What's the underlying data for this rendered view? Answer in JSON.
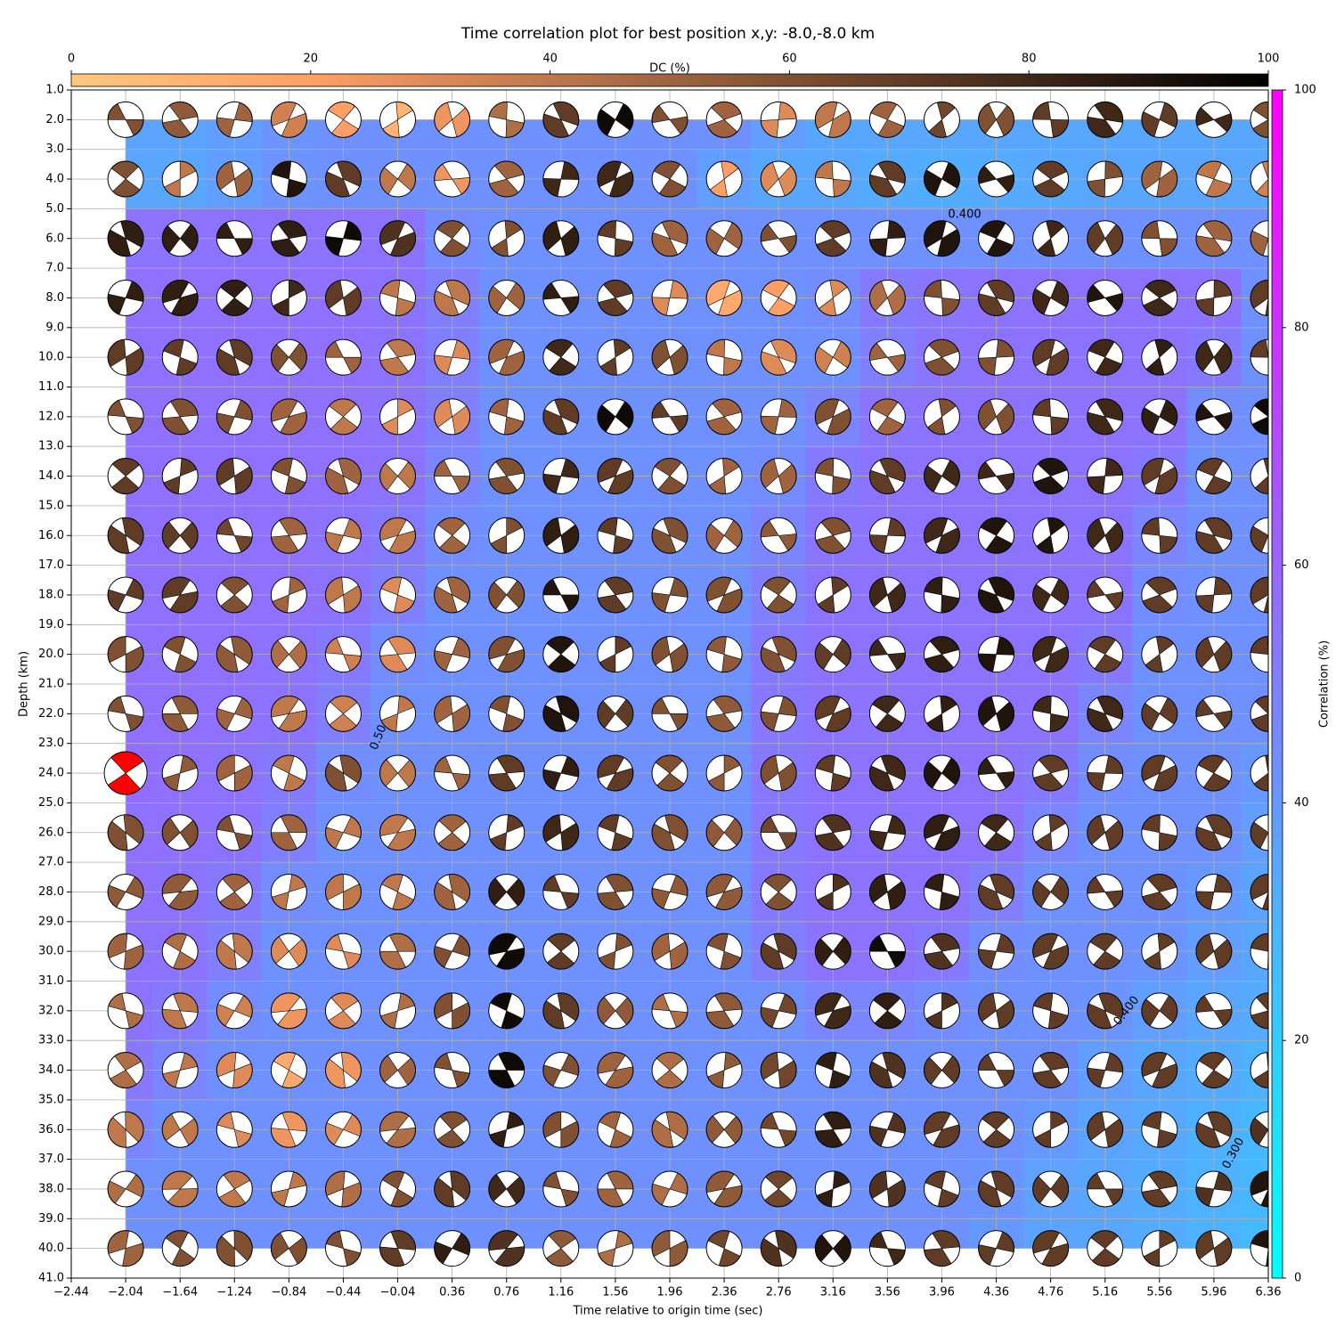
{
  "chart_data": {
    "type": "beachball-grid",
    "title": "Time correlation plot for best position x,y: -8.0,-8.0 km",
    "xlabel": "Time relative to origin time (sec)",
    "ylabel": "Depth (km)",
    "dc_label": "DC (%)",
    "corr_label": "Correlation (%)",
    "dc_colormap": "copper_r",
    "corr_colormap": "cool",
    "dc_lim": [
      0,
      100
    ],
    "dc_ticks": [
      0,
      20,
      40,
      60,
      80,
      100
    ],
    "corr_lim": [
      0,
      100
    ],
    "corr_ticks": [
      0,
      20,
      40,
      60,
      80,
      100
    ],
    "xlim": [
      -2.44,
      6.36
    ],
    "xticks": [
      {
        "value": -2.44,
        "label": "−2.44"
      },
      {
        "value": -2.04,
        "label": "−2.04"
      },
      {
        "value": -1.64,
        "label": "−1.64"
      },
      {
        "value": -1.24,
        "label": "−1.24"
      },
      {
        "value": -0.84,
        "label": "−0.84"
      },
      {
        "value": -0.44,
        "label": "−0.44"
      },
      {
        "value": -0.04,
        "label": "−0.04"
      },
      0.36,
      0.76,
      1.16,
      1.56,
      1.96,
      2.36,
      2.76,
      3.16,
      3.56,
      3.96,
      4.36,
      4.76,
      5.16,
      5.56,
      5.96,
      6.36
    ],
    "ylim": [
      41,
      1
    ],
    "yticks": [
      {
        "value": 1,
        "label": "1.0"
      },
      {
        "value": 2,
        "label": "2.0"
      },
      {
        "value": 3,
        "label": "3.0"
      },
      {
        "value": 4,
        "label": "4.0"
      },
      {
        "value": 5,
        "label": "5.0"
      },
      {
        "value": 6,
        "label": "6.0"
      },
      {
        "value": 7,
        "label": "7.0"
      },
      {
        "value": 8,
        "label": "8.0"
      },
      {
        "value": 9,
        "label": "9.0"
      },
      {
        "value": 10,
        "label": "10.0"
      },
      {
        "value": 11,
        "label": "11.0"
      },
      {
        "value": 12,
        "label": "12.0"
      },
      {
        "value": 13,
        "label": "13.0"
      },
      {
        "value": 14,
        "label": "14.0"
      },
      {
        "value": 15,
        "label": "15.0"
      },
      {
        "value": 16,
        "label": "16.0"
      },
      {
        "value": 17,
        "label": "17.0"
      },
      {
        "value": 18,
        "label": "18.0"
      },
      {
        "value": 19,
        "label": "19.0"
      },
      {
        "value": 20,
        "label": "20.0"
      },
      {
        "value": 21,
        "label": "21.0"
      },
      {
        "value": 22,
        "label": "22.0"
      },
      {
        "value": 23,
        "label": "23.0"
      },
      {
        "value": 24,
        "label": "24.0"
      },
      {
        "value": 25,
        "label": "25.0"
      },
      {
        "value": 26,
        "label": "26.0"
      },
      {
        "value": 27,
        "label": "27.0"
      },
      {
        "value": 28,
        "label": "28.0"
      },
      {
        "value": 29,
        "label": "29.0"
      },
      {
        "value": 30,
        "label": "30.0"
      },
      {
        "value": 31,
        "label": "31.0"
      },
      {
        "value": 32,
        "label": "32.0"
      },
      {
        "value": 33,
        "label": "33.0"
      },
      {
        "value": 34,
        "label": "34.0"
      },
      {
        "value": 35,
        "label": "35.0"
      },
      {
        "value": 36,
        "label": "36.0"
      },
      {
        "value": 37,
        "label": "37.0"
      },
      {
        "value": 38,
        "label": "38.0"
      },
      {
        "value": 39,
        "label": "39.0"
      },
      {
        "value": 40,
        "label": "40.0"
      },
      {
        "value": 41,
        "label": "41.0"
      }
    ],
    "grid": true,
    "x": [
      -2.04,
      -1.64,
      -1.24,
      -0.84,
      -0.44,
      -0.04,
      0.36,
      0.76,
      1.16,
      1.56,
      1.96,
      2.36,
      2.76,
      3.16,
      3.56,
      3.96,
      4.36,
      4.76,
      5.16,
      5.56,
      5.96,
      6.36
    ],
    "depths": [
      2,
      4,
      6,
      8,
      10,
      12,
      14,
      16,
      18,
      20,
      22,
      24,
      26,
      28,
      30,
      32,
      34,
      36,
      38,
      40
    ],
    "best": {
      "time": -2.04,
      "depth": 24,
      "color": "#ff0000"
    },
    "contour_labels": [
      "0.400",
      "0.50",
      "0.400",
      "0.300"
    ],
    "dc": [
      [
        60,
        55,
        50,
        35,
        20,
        10,
        25,
        45,
        70,
        95,
        60,
        50,
        30,
        40,
        50,
        65,
        60,
        70,
        80,
        70,
        80,
        60
      ],
      [
        60,
        40,
        50,
        90,
        70,
        40,
        25,
        50,
        80,
        80,
        60,
        20,
        30,
        40,
        70,
        90,
        85,
        70,
        60,
        50,
        40,
        35
      ],
      [
        85,
        85,
        85,
        85,
        95,
        75,
        60,
        60,
        85,
        70,
        50,
        50,
        60,
        70,
        85,
        90,
        90,
        80,
        70,
        60,
        50,
        50
      ],
      [
        85,
        85,
        85,
        80,
        70,
        40,
        40,
        50,
        85,
        70,
        30,
        15,
        20,
        30,
        45,
        60,
        70,
        80,
        90,
        80,
        70,
        70
      ],
      [
        70,
        70,
        70,
        60,
        50,
        40,
        30,
        50,
        80,
        70,
        60,
        40,
        30,
        35,
        50,
        60,
        60,
        70,
        80,
        85,
        80,
        70
      ],
      [
        60,
        60,
        60,
        50,
        40,
        30,
        30,
        50,
        70,
        95,
        70,
        50,
        50,
        60,
        50,
        60,
        60,
        70,
        80,
        85,
        90,
        95
      ],
      [
        70,
        70,
        70,
        60,
        50,
        40,
        50,
        60,
        80,
        70,
        60,
        50,
        50,
        60,
        70,
        80,
        80,
        90,
        80,
        70,
        70,
        70
      ],
      [
        70,
        70,
        65,
        50,
        40,
        40,
        50,
        60,
        85,
        70,
        60,
        50,
        55,
        60,
        70,
        80,
        90,
        90,
        80,
        70,
        70,
        70
      ],
      [
        70,
        70,
        60,
        50,
        40,
        30,
        50,
        60,
        90,
        70,
        60,
        60,
        60,
        70,
        80,
        85,
        90,
        80,
        70,
        70,
        70,
        70
      ],
      [
        60,
        60,
        55,
        45,
        35,
        30,
        50,
        60,
        90,
        70,
        60,
        55,
        60,
        70,
        80,
        85,
        90,
        80,
        70,
        70,
        70,
        70
      ],
      [
        60,
        55,
        50,
        40,
        35,
        40,
        50,
        60,
        90,
        70,
        60,
        55,
        60,
        70,
        80,
        85,
        90,
        80,
        80,
        70,
        70,
        70
      ],
      [
        60,
        55,
        50,
        40,
        60,
        40,
        50,
        70,
        85,
        70,
        60,
        55,
        60,
        70,
        80,
        90,
        85,
        70,
        70,
        70,
        70,
        70
      ],
      [
        60,
        60,
        60,
        50,
        40,
        40,
        50,
        70,
        80,
        70,
        60,
        55,
        65,
        75,
        80,
        85,
        80,
        70,
        70,
        70,
        70,
        70
      ],
      [
        55,
        55,
        50,
        40,
        40,
        40,
        50,
        85,
        70,
        60,
        55,
        55,
        60,
        75,
        85,
        85,
        70,
        70,
        70,
        70,
        70,
        70
      ],
      [
        50,
        45,
        40,
        30,
        30,
        45,
        60,
        95,
        70,
        60,
        50,
        60,
        70,
        85,
        95,
        75,
        70,
        70,
        70,
        70,
        70,
        70
      ],
      [
        45,
        40,
        35,
        25,
        30,
        45,
        60,
        95,
        70,
        55,
        45,
        55,
        65,
        80,
        85,
        75,
        70,
        70,
        70,
        70,
        70,
        70
      ],
      [
        45,
        40,
        30,
        15,
        25,
        50,
        60,
        95,
        60,
        50,
        45,
        55,
        65,
        85,
        75,
        70,
        70,
        70,
        70,
        70,
        70,
        70
      ],
      [
        40,
        40,
        30,
        25,
        30,
        45,
        60,
        85,
        60,
        50,
        45,
        55,
        65,
        85,
        75,
        70,
        70,
        70,
        70,
        70,
        70,
        75
      ],
      [
        45,
        40,
        40,
        40,
        45,
        60,
        70,
        80,
        60,
        50,
        45,
        55,
        65,
        85,
        75,
        70,
        70,
        70,
        70,
        70,
        75,
        90
      ],
      [
        50,
        60,
        60,
        60,
        60,
        70,
        85,
        75,
        55,
        45,
        55,
        65,
        75,
        90,
        80,
        70,
        70,
        70,
        70,
        70,
        70,
        90
      ]
    ],
    "correlation": [
      [
        36,
        36,
        38,
        42,
        43,
        43,
        43,
        43,
        43,
        43,
        43,
        43,
        38,
        35,
        35,
        35,
        35,
        35,
        35,
        35,
        35,
        35
      ],
      [
        35,
        35,
        38,
        42,
        43,
        43,
        43,
        43,
        43,
        43,
        43,
        38,
        35,
        35,
        33,
        32,
        33,
        34,
        35,
        35,
        35,
        35
      ],
      [
        55,
        55,
        55,
        55,
        55,
        55,
        45,
        43,
        43,
        43,
        43,
        43,
        43,
        43,
        43,
        43,
        43,
        43,
        43,
        43,
        43,
        43
      ],
      [
        56,
        56,
        56,
        56,
        56,
        55,
        50,
        43,
        43,
        43,
        43,
        43,
        43,
        45,
        52,
        54,
        55,
        55,
        55,
        55,
        55,
        43
      ],
      [
        56,
        56,
        56,
        56,
        56,
        55,
        50,
        43,
        43,
        43,
        43,
        43,
        43,
        43,
        50,
        54,
        55,
        55,
        55,
        55,
        52,
        43
      ],
      [
        56,
        56,
        56,
        56,
        56,
        55,
        50,
        43,
        43,
        43,
        43,
        43,
        43,
        48,
        54,
        55,
        55,
        55,
        55,
        55,
        45,
        43
      ],
      [
        56,
        56,
        56,
        56,
        56,
        55,
        48,
        43,
        43,
        43,
        43,
        43,
        45,
        52,
        55,
        55,
        55,
        55,
        55,
        52,
        43,
        43
      ],
      [
        56,
        56,
        56,
        56,
        55,
        52,
        45,
        43,
        43,
        43,
        43,
        43,
        48,
        54,
        55,
        55,
        55,
        55,
        55,
        48,
        43,
        43
      ],
      [
        56,
        56,
        56,
        56,
        55,
        50,
        43,
        43,
        43,
        43,
        43,
        43,
        50,
        55,
        55,
        55,
        55,
        55,
        55,
        45,
        43,
        43
      ],
      [
        56,
        56,
        56,
        55,
        52,
        45,
        43,
        43,
        43,
        43,
        43,
        43,
        52,
        55,
        55,
        55,
        55,
        55,
        52,
        43,
        43,
        43
      ],
      [
        56,
        56,
        56,
        55,
        50,
        43,
        43,
        43,
        43,
        43,
        43,
        43,
        53,
        55,
        55,
        55,
        55,
        55,
        48,
        43,
        43,
        43
      ],
      [
        57,
        56,
        55,
        52,
        45,
        43,
        43,
        43,
        43,
        43,
        43,
        43,
        53,
        55,
        55,
        55,
        55,
        52,
        45,
        43,
        43,
        40
      ],
      [
        56,
        56,
        55,
        50,
        43,
        43,
        43,
        43,
        43,
        43,
        43,
        43,
        53,
        55,
        55,
        55,
        55,
        48,
        43,
        43,
        43,
        38
      ],
      [
        56,
        55,
        52,
        45,
        43,
        43,
        43,
        43,
        43,
        43,
        43,
        43,
        52,
        55,
        55,
        55,
        50,
        43,
        43,
        43,
        40,
        36
      ],
      [
        55,
        55,
        50,
        43,
        43,
        43,
        43,
        43,
        43,
        43,
        43,
        43,
        50,
        55,
        55,
        52,
        45,
        43,
        43,
        42,
        38,
        35
      ],
      [
        55,
        52,
        45,
        43,
        43,
        43,
        43,
        43,
        43,
        43,
        43,
        43,
        43,
        48,
        48,
        45,
        43,
        43,
        42,
        38,
        35,
        33
      ],
      [
        53,
        48,
        43,
        43,
        43,
        43,
        43,
        43,
        43,
        43,
        43,
        43,
        43,
        43,
        43,
        43,
        43,
        43,
        38,
        35,
        33,
        30
      ],
      [
        48,
        43,
        43,
        43,
        43,
        43,
        43,
        43,
        43,
        43,
        43,
        43,
        43,
        43,
        43,
        43,
        43,
        40,
        36,
        34,
        31,
        28
      ],
      [
        43,
        43,
        43,
        43,
        43,
        43,
        43,
        43,
        43,
        43,
        43,
        43,
        43,
        43,
        43,
        43,
        42,
        37,
        35,
        33,
        30,
        28
      ],
      [
        43,
        43,
        43,
        43,
        43,
        43,
        43,
        43,
        43,
        43,
        43,
        43,
        43,
        43,
        43,
        43,
        40,
        36,
        35,
        33,
        30,
        27
      ]
    ]
  }
}
